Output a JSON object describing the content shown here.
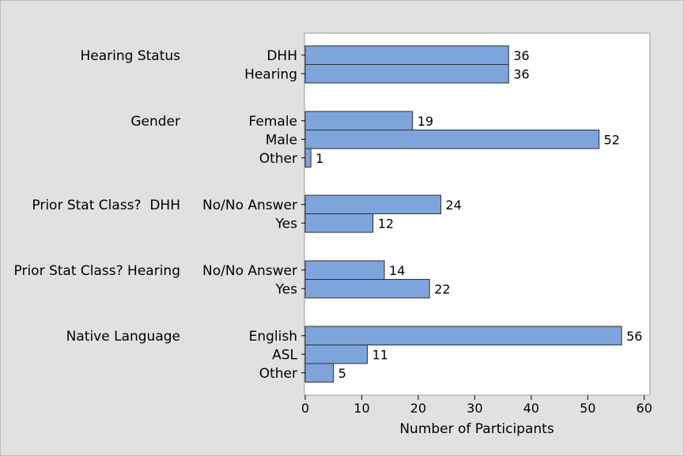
{
  "chart_data": {
    "type": "bar",
    "orientation": "horizontal",
    "xlabel": "Number of Participants",
    "xlim": [
      0,
      60
    ],
    "xticks": [
      0,
      10,
      20,
      30,
      40,
      50,
      60
    ],
    "grid": false,
    "bar_color": "#7da5dc",
    "bar_edge_color": "#2e2e2e",
    "background_color": "#e1e1e1",
    "plot_background_color": "#ffffff",
    "groups": [
      {
        "name": "Hearing Status",
        "categories": [
          "DHH",
          "Hearing"
        ],
        "values": [
          36,
          36
        ]
      },
      {
        "name": "Gender",
        "categories": [
          "Female",
          "Male",
          "Other"
        ],
        "values": [
          19,
          52,
          1
        ]
      },
      {
        "name": "Prior Stat Class?  DHH",
        "categories": [
          "No/No Answer",
          "Yes"
        ],
        "values": [
          24,
          12
        ]
      },
      {
        "name": "Prior Stat Class? Hearing",
        "categories": [
          "No/No Answer",
          "Yes"
        ],
        "values": [
          14,
          22
        ]
      },
      {
        "name": "Native Language",
        "categories": [
          "English",
          "ASL",
          "Other"
        ],
        "values": [
          56,
          11,
          5
        ]
      }
    ]
  }
}
